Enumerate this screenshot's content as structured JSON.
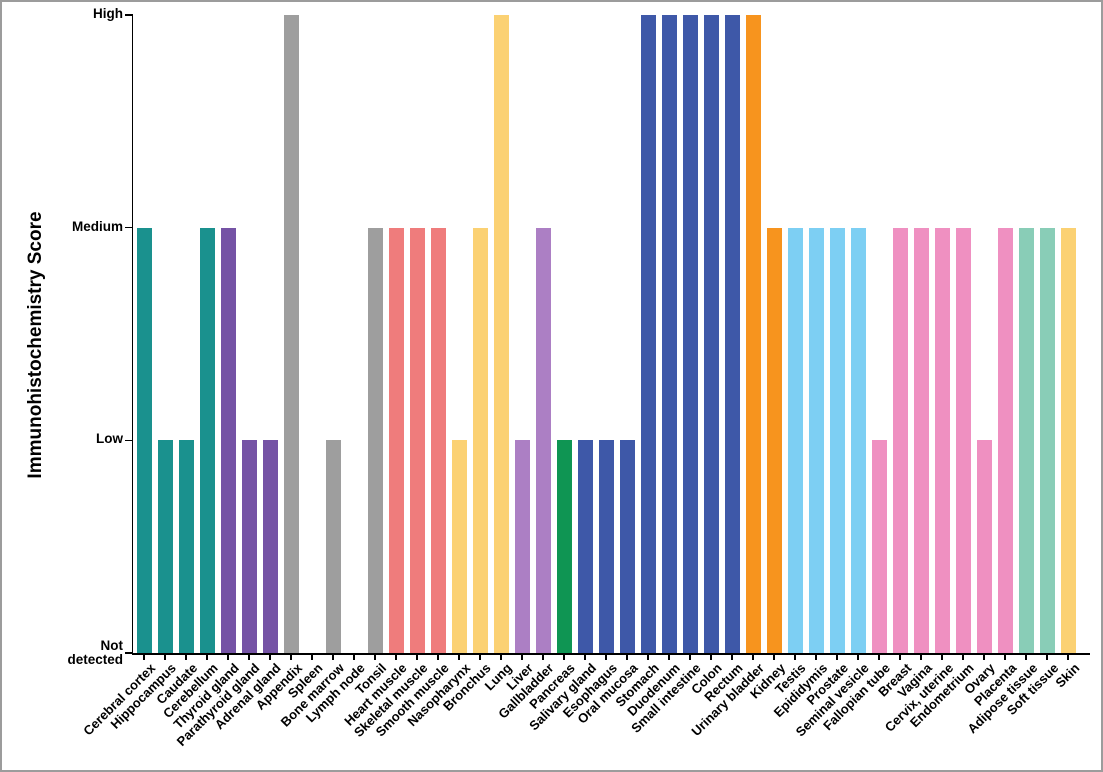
{
  "window": {
    "border_color": "#9c9c9c",
    "background_color": "#ffffff"
  },
  "chart_data": {
    "type": "bar",
    "title": "",
    "xlabel": "",
    "ylabel": "Immunohistochemistry Score",
    "y_tick_labels": [
      "Not detected",
      "Low",
      "Medium",
      "High"
    ],
    "score_levels": {
      "Not detected": 0,
      "Low": 1,
      "Medium": 2,
      "High": 3
    },
    "ylim": [
      0,
      3
    ],
    "grid": false,
    "legend": "none",
    "axis_color": "#000000",
    "x_label_rotation_deg": 45,
    "bars": [
      {
        "tissue": "Cerebral cortex",
        "score": "Medium",
        "value": 2,
        "color": "#1A918E"
      },
      {
        "tissue": "Hippocampus",
        "score": "Low",
        "value": 1,
        "color": "#1A918E"
      },
      {
        "tissue": "Caudate",
        "score": "Low",
        "value": 1,
        "color": "#1A918E"
      },
      {
        "tissue": "Cerebellum",
        "score": "Medium",
        "value": 2,
        "color": "#1A918E"
      },
      {
        "tissue": "Thyroid gland",
        "score": "Medium",
        "value": 2,
        "color": "#7553A5"
      },
      {
        "tissue": "Parathyroid gland",
        "score": "Low",
        "value": 1,
        "color": "#7553A5"
      },
      {
        "tissue": "Adrenal gland",
        "score": "Low",
        "value": 1,
        "color": "#7553A5"
      },
      {
        "tissue": "Appendix",
        "score": "High",
        "value": 3,
        "color": "#9E9E9E"
      },
      {
        "tissue": "Spleen",
        "score": "Not detected",
        "value": 0,
        "color": "#9E9E9E"
      },
      {
        "tissue": "Bone marrow",
        "score": "Low",
        "value": 1,
        "color": "#9E9E9E"
      },
      {
        "tissue": "Lymph node",
        "score": "Not detected",
        "value": 0,
        "color": "#9E9E9E"
      },
      {
        "tissue": "Tonsil",
        "score": "Medium",
        "value": 2,
        "color": "#9E9E9E"
      },
      {
        "tissue": "Heart muscle",
        "score": "Medium",
        "value": 2,
        "color": "#EF7C7C"
      },
      {
        "tissue": "Skeletal muscle",
        "score": "Medium",
        "value": 2,
        "color": "#EF7C7C"
      },
      {
        "tissue": "Smooth muscle",
        "score": "Medium",
        "value": 2,
        "color": "#EF7C7C"
      },
      {
        "tissue": "Nasopharynx",
        "score": "Low",
        "value": 1,
        "color": "#FBD173"
      },
      {
        "tissue": "Bronchus",
        "score": "Medium",
        "value": 2,
        "color": "#FBD173"
      },
      {
        "tissue": "Lung",
        "score": "High",
        "value": 3,
        "color": "#FBD173"
      },
      {
        "tissue": "Liver",
        "score": "Low",
        "value": 1,
        "color": "#AC7FC4"
      },
      {
        "tissue": "Gallbladder",
        "score": "Medium",
        "value": 2,
        "color": "#AC7FC4"
      },
      {
        "tissue": "Pancreas",
        "score": "Low",
        "value": 1,
        "color": "#0F9553"
      },
      {
        "tissue": "Salivary gland",
        "score": "Low",
        "value": 1,
        "color": "#3E58A8"
      },
      {
        "tissue": "Esophagus",
        "score": "Low",
        "value": 1,
        "color": "#3E58A8"
      },
      {
        "tissue": "Oral mucosa",
        "score": "Low",
        "value": 1,
        "color": "#3E58A8"
      },
      {
        "tissue": "Stomach",
        "score": "High",
        "value": 3,
        "color": "#3E58A8"
      },
      {
        "tissue": "Duodenum",
        "score": "High",
        "value": 3,
        "color": "#3E58A8"
      },
      {
        "tissue": "Small intestine",
        "score": "High",
        "value": 3,
        "color": "#3E58A8"
      },
      {
        "tissue": "Colon",
        "score": "High",
        "value": 3,
        "color": "#3E58A8"
      },
      {
        "tissue": "Rectum",
        "score": "High",
        "value": 3,
        "color": "#3E58A8"
      },
      {
        "tissue": "Urinary bladder",
        "score": "High",
        "value": 3,
        "color": "#F7941E"
      },
      {
        "tissue": "Kidney",
        "score": "Medium",
        "value": 2,
        "color": "#F7941E"
      },
      {
        "tissue": "Testis",
        "score": "Medium",
        "value": 2,
        "color": "#7DCFF3"
      },
      {
        "tissue": "Epididymis",
        "score": "Medium",
        "value": 2,
        "color": "#7DCFF3"
      },
      {
        "tissue": "Prostate",
        "score": "Medium",
        "value": 2,
        "color": "#7DCFF3"
      },
      {
        "tissue": "Seminal vesicle",
        "score": "Medium",
        "value": 2,
        "color": "#7DCFF3"
      },
      {
        "tissue": "Fallopian tube",
        "score": "Low",
        "value": 1,
        "color": "#EF90C1"
      },
      {
        "tissue": "Breast",
        "score": "Medium",
        "value": 2,
        "color": "#EF90C1"
      },
      {
        "tissue": "Vagina",
        "score": "Medium",
        "value": 2,
        "color": "#EF90C1"
      },
      {
        "tissue": "Cervix, uterine",
        "score": "Medium",
        "value": 2,
        "color": "#EF90C1"
      },
      {
        "tissue": "Endometrium",
        "score": "Medium",
        "value": 2,
        "color": "#EF90C1"
      },
      {
        "tissue": "Ovary",
        "score": "Low",
        "value": 1,
        "color": "#EF90C1"
      },
      {
        "tissue": "Placenta",
        "score": "Medium",
        "value": 2,
        "color": "#EF90C1"
      },
      {
        "tissue": "Adipose tissue",
        "score": "Medium",
        "value": 2,
        "color": "#89CDB7"
      },
      {
        "tissue": "Soft tissue",
        "score": "Medium",
        "value": 2,
        "color": "#89CDB7"
      },
      {
        "tissue": "Skin",
        "score": "Medium",
        "value": 2,
        "color": "#FBD173"
      }
    ]
  }
}
